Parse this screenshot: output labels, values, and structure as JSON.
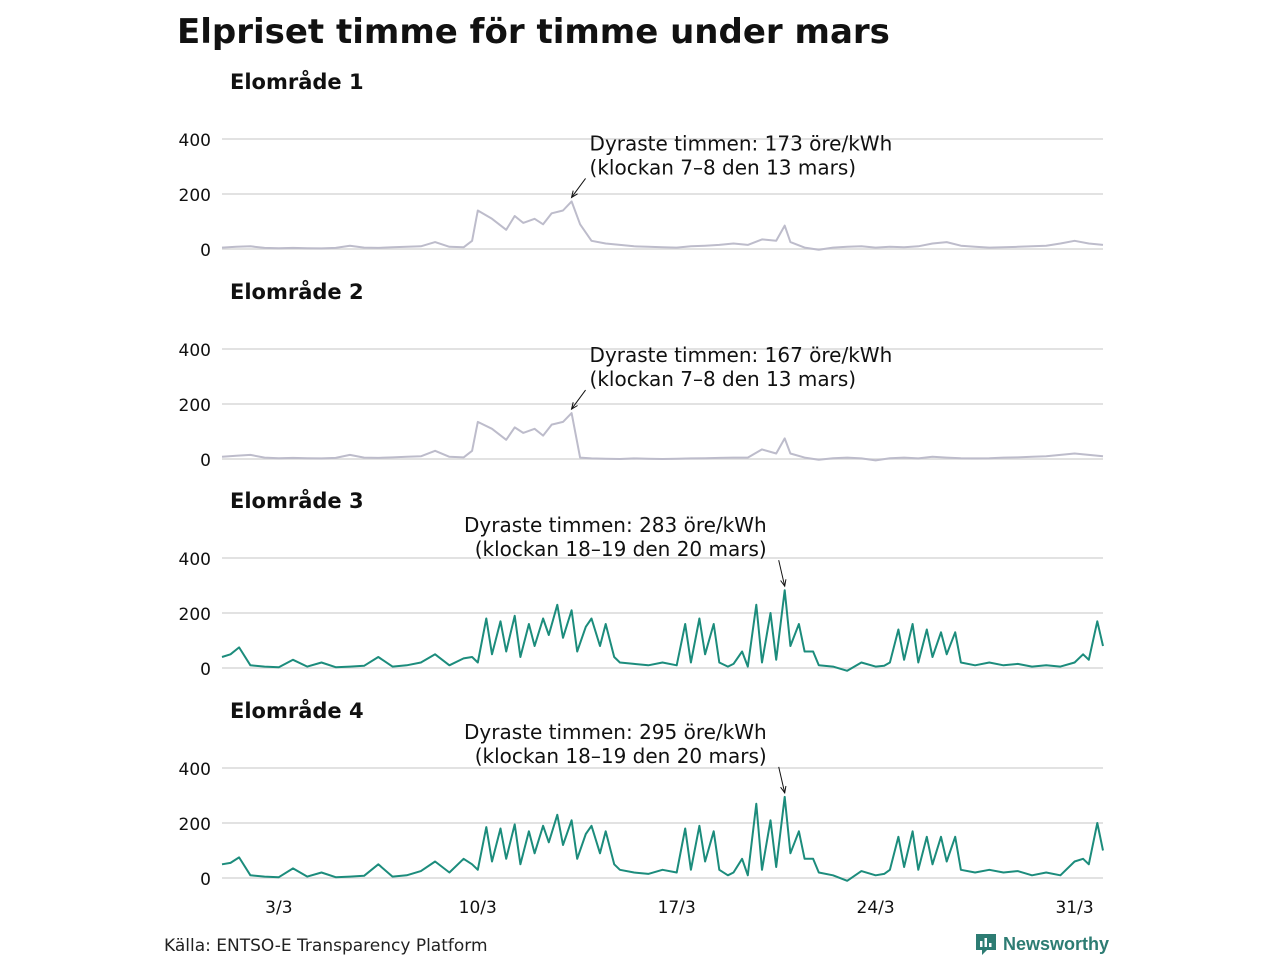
{
  "title": "Elpriset timme för timme under mars",
  "source": "Källa: ENTSO-E Transparency Platform",
  "brand": "Newsworthy",
  "colors": {
    "muted": "#bdbccb",
    "accent": "#1c8c7c",
    "grid": "#d9d9d9",
    "brand": "#2d7c73"
  },
  "chart_data": [
    {
      "type": "line",
      "title": "Elområde 1",
      "color": "#bdbccb",
      "ylim": [
        0,
        400
      ],
      "yticks": [
        0,
        200,
        400
      ],
      "xlim": [
        1,
        32
      ],
      "xticks": [
        {
          "x": 3,
          "label": "3/3"
        },
        {
          "x": 10,
          "label": "10/3"
        },
        {
          "x": 17,
          "label": "17/3"
        },
        {
          "x": 24,
          "label": "24/3"
        },
        {
          "x": 31,
          "label": "31/3"
        }
      ],
      "annotation": {
        "lines": [
          "Dyraste timmen: 173 öre/kWh",
          "(klockan 7–8 den 13 mars)"
        ],
        "x": 13.3,
        "y": 173
      },
      "series": [
        {
          "x": [
            1.0,
            1.5,
            2.0,
            2.5,
            3.0,
            3.5,
            4.0,
            4.5,
            5.0,
            5.5,
            6.0,
            6.5,
            7.0,
            7.5,
            8.0,
            8.5,
            9.0,
            9.5,
            9.8,
            10.0,
            10.5,
            11.0,
            11.3,
            11.6,
            12.0,
            12.3,
            12.6,
            13.0,
            13.3,
            13.6,
            14.0,
            14.5,
            15.0,
            15.5,
            16.0,
            16.5,
            17.0,
            17.5,
            18.0,
            18.5,
            19.0,
            19.5,
            20.0,
            20.5,
            20.8,
            21.0,
            21.5,
            22.0,
            22.5,
            23.0,
            23.5,
            24.0,
            24.5,
            25.0,
            25.5,
            26.0,
            26.5,
            27.0,
            27.5,
            28.0,
            28.5,
            29.0,
            29.5,
            30.0,
            30.5,
            31.0,
            31.5,
            32.0
          ],
          "y": [
            5,
            8,
            10,
            4,
            3,
            4,
            3,
            2,
            4,
            12,
            5,
            4,
            6,
            8,
            10,
            25,
            8,
            6,
            30,
            140,
            110,
            70,
            120,
            95,
            110,
            90,
            130,
            140,
            173,
            90,
            30,
            20,
            15,
            10,
            8,
            6,
            5,
            10,
            12,
            15,
            20,
            15,
            35,
            30,
            85,
            25,
            5,
            -3,
            5,
            8,
            10,
            5,
            8,
            6,
            10,
            20,
            25,
            12,
            8,
            5,
            6,
            8,
            10,
            12,
            20,
            30,
            20,
            15
          ]
        }
      ]
    },
    {
      "type": "line",
      "title": "Elområde 2",
      "color": "#bdbccb",
      "ylim": [
        0,
        400
      ],
      "yticks": [
        0,
        200,
        400
      ],
      "xlim": [
        1,
        32
      ],
      "xticks": [
        {
          "x": 3,
          "label": "3/3"
        },
        {
          "x": 10,
          "label": "10/3"
        },
        {
          "x": 17,
          "label": "17/3"
        },
        {
          "x": 24,
          "label": "24/3"
        },
        {
          "x": 31,
          "label": "31/3"
        }
      ],
      "annotation": {
        "lines": [
          "Dyraste timmen: 167 öre/kWh",
          "(klockan 7–8 den 13 mars)"
        ],
        "x": 13.3,
        "y": 167
      },
      "series": [
        {
          "x": [
            1.0,
            1.5,
            2.0,
            2.5,
            3.0,
            3.5,
            4.0,
            4.5,
            5.0,
            5.5,
            6.0,
            6.5,
            7.0,
            7.5,
            8.0,
            8.5,
            9.0,
            9.5,
            9.8,
            10.0,
            10.5,
            11.0,
            11.3,
            11.6,
            12.0,
            12.3,
            12.6,
            13.0,
            13.3,
            13.6,
            14.0,
            14.5,
            15.0,
            15.5,
            16.0,
            16.5,
            17.0,
            17.5,
            18.0,
            18.5,
            19.0,
            19.5,
            20.0,
            20.5,
            20.8,
            21.0,
            21.5,
            22.0,
            22.5,
            23.0,
            23.5,
            24.0,
            24.5,
            25.0,
            25.5,
            26.0,
            26.5,
            27.0,
            27.5,
            28.0,
            28.5,
            29.0,
            29.5,
            30.0,
            30.5,
            31.0,
            31.5,
            32.0
          ],
          "y": [
            8,
            12,
            15,
            5,
            3,
            4,
            3,
            2,
            4,
            15,
            5,
            4,
            6,
            8,
            10,
            30,
            8,
            6,
            30,
            135,
            110,
            70,
            115,
            95,
            110,
            85,
            125,
            135,
            167,
            5,
            2,
            1,
            0,
            2,
            1,
            0,
            1,
            2,
            3,
            4,
            5,
            5,
            35,
            20,
            75,
            20,
            5,
            -3,
            3,
            5,
            2,
            -5,
            3,
            5,
            2,
            8,
            5,
            3,
            2,
            3,
            5,
            6,
            8,
            10,
            15,
            20,
            15,
            10
          ]
        }
      ]
    },
    {
      "type": "line",
      "title": "Elområde 3",
      "color": "#1c8c7c",
      "ylim": [
        0,
        400
      ],
      "yticks": [
        0,
        200,
        400
      ],
      "xlim": [
        1,
        32
      ],
      "xticks": [
        {
          "x": 3,
          "label": "3/3"
        },
        {
          "x": 10,
          "label": "10/3"
        },
        {
          "x": 17,
          "label": "17/3"
        },
        {
          "x": 24,
          "label": "24/3"
        },
        {
          "x": 31,
          "label": "31/3"
        }
      ],
      "annotation": {
        "lines": [
          "Dyraste timmen: 283 öre/kWh",
          "(klockan 18–19 den 20 mars)"
        ],
        "x": 20.8,
        "y": 283
      },
      "series": [
        {
          "x": [
            1.0,
            1.3,
            1.6,
            2.0,
            2.5,
            3.0,
            3.5,
            4.0,
            4.5,
            5.0,
            5.5,
            6.0,
            6.5,
            7.0,
            7.5,
            8.0,
            8.5,
            9.0,
            9.5,
            9.8,
            10.0,
            10.3,
            10.5,
            10.8,
            11.0,
            11.3,
            11.5,
            11.8,
            12.0,
            12.3,
            12.5,
            12.8,
            13.0,
            13.3,
            13.5,
            13.8,
            14.0,
            14.3,
            14.5,
            14.8,
            15.0,
            15.5,
            16.0,
            16.5,
            17.0,
            17.3,
            17.5,
            17.8,
            18.0,
            18.3,
            18.5,
            18.8,
            19.0,
            19.3,
            19.5,
            19.8,
            20.0,
            20.3,
            20.5,
            20.8,
            21.0,
            21.3,
            21.5,
            21.8,
            22.0,
            22.5,
            23.0,
            23.5,
            24.0,
            24.3,
            24.5,
            24.8,
            25.0,
            25.3,
            25.5,
            25.8,
            26.0,
            26.3,
            26.5,
            26.8,
            27.0,
            27.5,
            28.0,
            28.5,
            29.0,
            29.5,
            30.0,
            30.5,
            31.0,
            31.3,
            31.5,
            31.8,
            32.0
          ],
          "y": [
            40,
            50,
            75,
            10,
            5,
            3,
            30,
            5,
            20,
            3,
            5,
            8,
            40,
            5,
            10,
            20,
            50,
            10,
            35,
            40,
            20,
            180,
            50,
            170,
            60,
            190,
            40,
            160,
            80,
            180,
            120,
            230,
            110,
            210,
            60,
            150,
            180,
            80,
            160,
            40,
            20,
            15,
            10,
            20,
            10,
            160,
            20,
            180,
            50,
            160,
            20,
            5,
            15,
            60,
            5,
            230,
            20,
            200,
            30,
            283,
            80,
            160,
            60,
            60,
            10,
            5,
            -10,
            20,
            5,
            8,
            20,
            140,
            30,
            160,
            20,
            140,
            40,
            130,
            50,
            130,
            20,
            10,
            20,
            10,
            15,
            5,
            10,
            5,
            20,
            50,
            30,
            170,
            80
          ]
        }
      ]
    },
    {
      "type": "line",
      "title": "Elområde 4",
      "color": "#1c8c7c",
      "ylim": [
        0,
        400
      ],
      "yticks": [
        0,
        200,
        400
      ],
      "xlim": [
        1,
        32
      ],
      "xticks": [
        {
          "x": 3,
          "label": "3/3"
        },
        {
          "x": 10,
          "label": "10/3"
        },
        {
          "x": 17,
          "label": "17/3"
        },
        {
          "x": 24,
          "label": "24/3"
        },
        {
          "x": 31,
          "label": "31/3"
        }
      ],
      "annotation": {
        "lines": [
          "Dyraste timmen: 295 öre/kWh",
          "(klockan 18–19 den 20 mars)"
        ],
        "x": 20.8,
        "y": 295
      },
      "series": [
        {
          "x": [
            1.0,
            1.3,
            1.6,
            2.0,
            2.5,
            3.0,
            3.5,
            4.0,
            4.5,
            5.0,
            5.5,
            6.0,
            6.5,
            7.0,
            7.5,
            8.0,
            8.5,
            9.0,
            9.5,
            9.8,
            10.0,
            10.3,
            10.5,
            10.8,
            11.0,
            11.3,
            11.5,
            11.8,
            12.0,
            12.3,
            12.5,
            12.8,
            13.0,
            13.3,
            13.5,
            13.8,
            14.0,
            14.3,
            14.5,
            14.8,
            15.0,
            15.5,
            16.0,
            16.5,
            17.0,
            17.3,
            17.5,
            17.8,
            18.0,
            18.3,
            18.5,
            18.8,
            19.0,
            19.3,
            19.5,
            19.8,
            20.0,
            20.3,
            20.5,
            20.8,
            21.0,
            21.3,
            21.5,
            21.8,
            22.0,
            22.5,
            23.0,
            23.5,
            24.0,
            24.3,
            24.5,
            24.8,
            25.0,
            25.3,
            25.5,
            25.8,
            26.0,
            26.3,
            26.5,
            26.8,
            27.0,
            27.5,
            28.0,
            28.5,
            29.0,
            29.5,
            30.0,
            30.5,
            31.0,
            31.3,
            31.5,
            31.8,
            32.0
          ],
          "y": [
            50,
            55,
            75,
            10,
            5,
            3,
            35,
            5,
            20,
            3,
            5,
            8,
            50,
            5,
            10,
            25,
            60,
            20,
            70,
            50,
            30,
            185,
            60,
            180,
            70,
            195,
            50,
            170,
            90,
            190,
            130,
            230,
            120,
            210,
            70,
            160,
            190,
            90,
            170,
            50,
            30,
            20,
            15,
            30,
            20,
            180,
            30,
            190,
            60,
            170,
            30,
            10,
            20,
            70,
            10,
            270,
            30,
            210,
            40,
            295,
            90,
            170,
            70,
            70,
            20,
            10,
            -10,
            25,
            10,
            15,
            30,
            150,
            40,
            170,
            30,
            150,
            50,
            150,
            60,
            150,
            30,
            20,
            30,
            20,
            25,
            10,
            20,
            10,
            60,
            70,
            50,
            200,
            100
          ]
        }
      ]
    }
  ]
}
